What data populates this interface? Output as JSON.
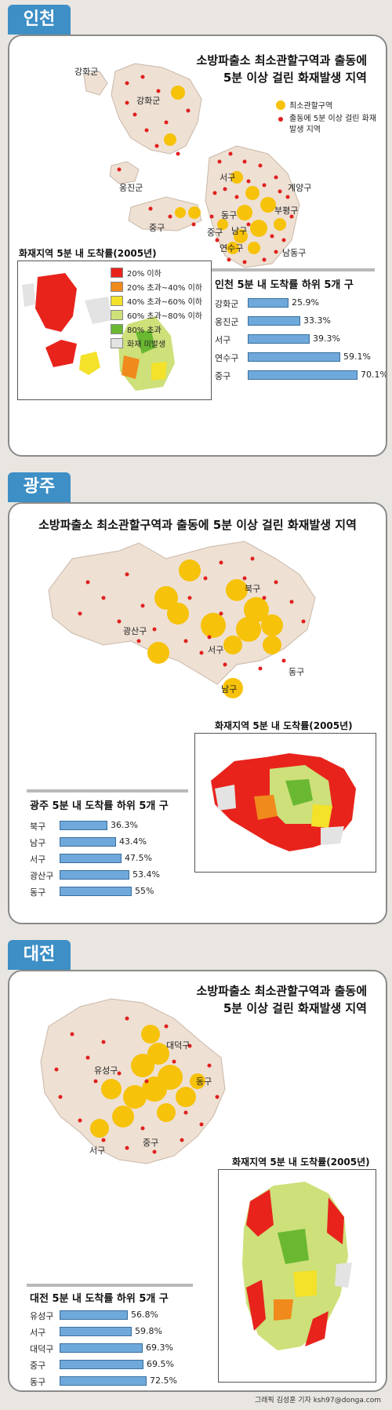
{
  "credit": "그래픽 김성훈 기자 ksh97@donga.com",
  "colors": {
    "tab": "#3d8fc6",
    "zone": "#f6c20a",
    "fire": "#e0201e",
    "land": "#eee0d3",
    "bar": "#6fa8da"
  },
  "map_legend": {
    "zone": "최소관할구역",
    "fire": "출동에 5분 이상 걸린 화재발생 지역"
  },
  "inset_legend": [
    {
      "label": "20% 이하",
      "color": "#e8231c"
    },
    {
      "label": "20% 초과~40% 이하",
      "color": "#f08a1c"
    },
    {
      "label": "40% 초과~60% 이하",
      "color": "#f3e12a"
    },
    {
      "label": "60% 초과~80% 이하",
      "color": "#cde07a"
    },
    {
      "label": "80% 초과",
      "color": "#6ab832"
    },
    {
      "label": "화재 미발생",
      "color": "#e3e3e3"
    }
  ],
  "sections": [
    {
      "tab": "인천",
      "title_line1": "소방파출소 최소관할구역과 출동에",
      "title_line2": "5분 이상 걸린 화재발생 지역",
      "districts": [
        "강화군",
        "강화군",
        "옹진군",
        "서구",
        "계양구",
        "부평구",
        "동구",
        "중구",
        "중구",
        "남구",
        "연수구",
        "남동구"
      ],
      "inset_label": "화재지역 5분 내 도착률(2005년)",
      "rank_title": "인천 5분 내 도착률 하위 5개 구"
    },
    {
      "tab": "광주",
      "title_line1": "소방파출소 최소관할구역과 출동에 5분 이상 걸린 화재발생 지역",
      "title_line2": "",
      "districts": [
        "북구",
        "광산구",
        "서구",
        "동구",
        "남구"
      ],
      "inset_label": "화재지역 5분 내 도착률(2005년)",
      "rank_title": "광주 5분 내 도착률 하위 5개 구"
    },
    {
      "tab": "대전",
      "title_line1": "소방파출소 최소관할구역과 출동에",
      "title_line2": "5분 이상 걸린 화재발생 지역",
      "districts": [
        "대덕구",
        "유성구",
        "동구",
        "서구",
        "중구"
      ],
      "inset_label": "화재지역  5분 내 도착률(2005년)",
      "rank_title": "대전 5분 내 도착률 하위 5개 구"
    }
  ],
  "chart_data": [
    {
      "type": "bar",
      "title": "인천 5분 내 도착률 하위 5개 구",
      "categories": [
        "강화군",
        "옹진군",
        "서구",
        "연수구",
        "중구"
      ],
      "values": [
        25.9,
        33.3,
        39.3,
        59.1,
        70.1
      ],
      "value_labels": [
        "25.9%",
        "33.3%",
        "39.3%",
        "59.1%",
        "70.1%"
      ],
      "unit": "%"
    },
    {
      "type": "bar",
      "title": "광주 5분 내 도착률 하위 5개 구",
      "categories": [
        "북구",
        "남구",
        "서구",
        "광산구",
        "동구"
      ],
      "values": [
        36.3,
        43.4,
        47.5,
        53.4,
        55
      ],
      "value_labels": [
        "36.3%",
        "43.4%",
        "47.5%",
        "53.4%",
        "55%"
      ],
      "unit": "%"
    },
    {
      "type": "bar",
      "title": "대전 5분 내 도착률 하위 5개 구",
      "categories": [
        "유성구",
        "서구",
        "대덕구",
        "중구",
        "동구"
      ],
      "values": [
        56.8,
        59.8,
        69.3,
        69.5,
        72.5
      ],
      "value_labels": [
        "56.8%",
        "59.8%",
        "69.3%",
        "69.5%",
        "72.5%"
      ],
      "unit": "%"
    }
  ]
}
